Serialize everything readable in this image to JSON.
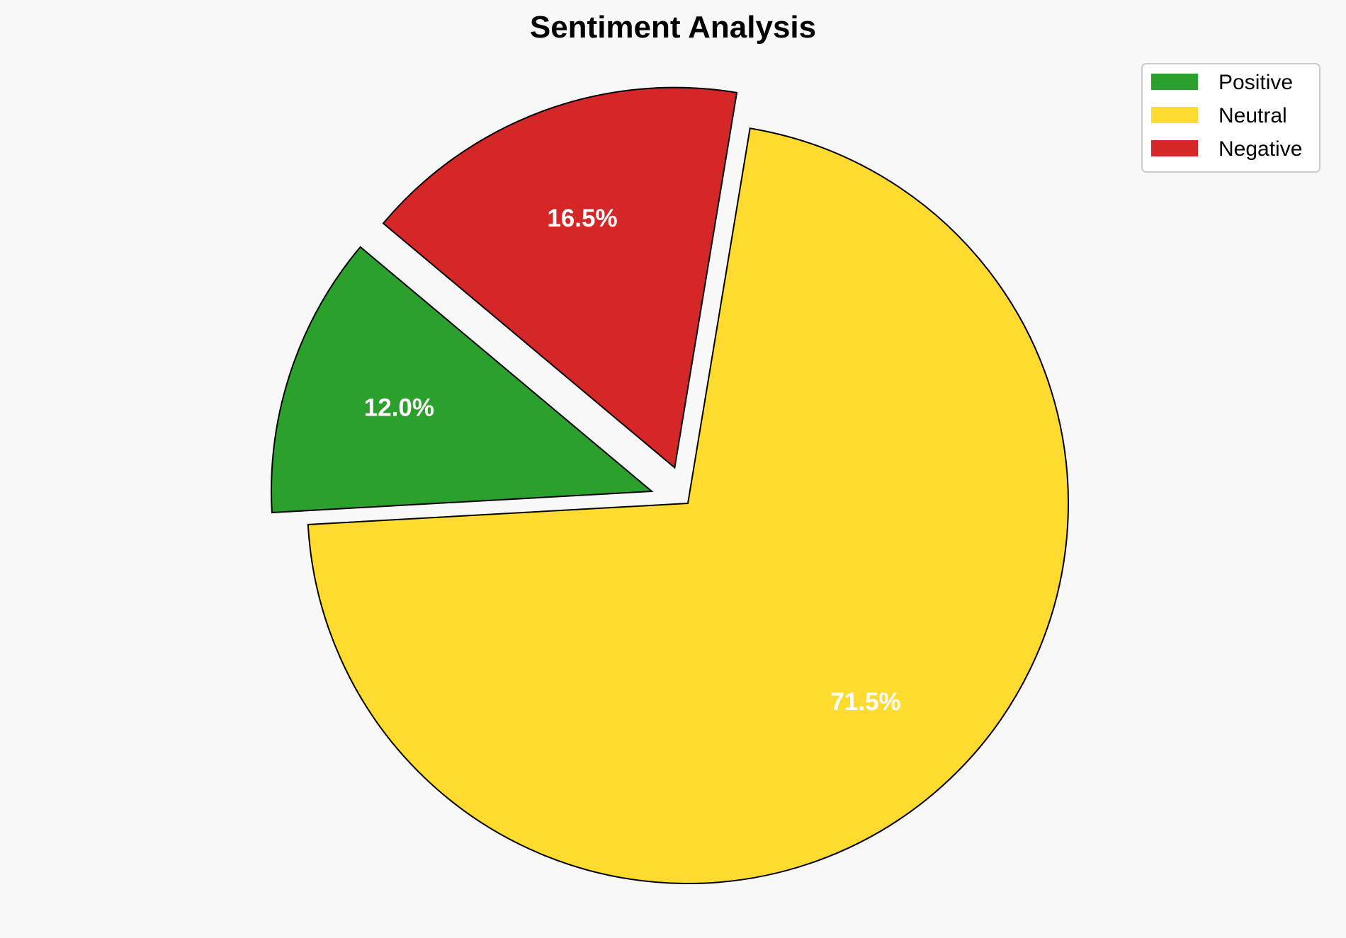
{
  "chart_data": {
    "type": "pie",
    "title": "Sentiment Analysis",
    "categories": [
      "Positive",
      "Neutral",
      "Negative"
    ],
    "values": [
      12.0,
      71.5,
      16.5
    ],
    "labels": [
      "12.0%",
      "71.5%",
      "16.5%"
    ],
    "colors": [
      "#2ca02c",
      "#ffda2f",
      "#d62728"
    ],
    "explode": [
      0.1,
      0,
      0.1
    ],
    "start_angle_deg": 140,
    "direction": "counterclockwise",
    "legend_placement": "top-right",
    "edge_color": "#000000",
    "label_color": "#ffffff",
    "background": "#f8f8f8"
  }
}
